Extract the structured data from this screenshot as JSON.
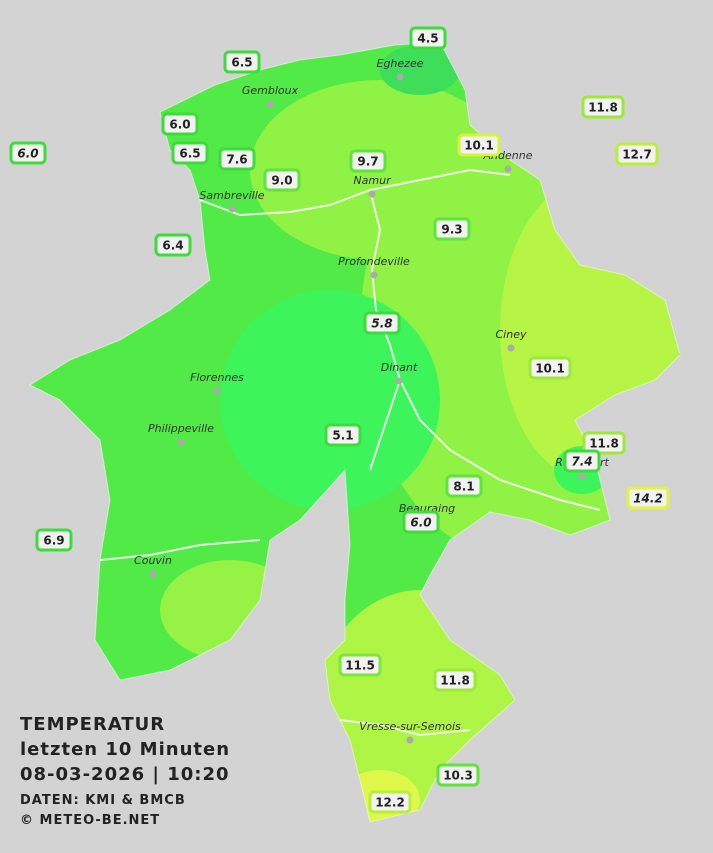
{
  "map": {
    "title": [
      "TEMPERATUR",
      "letzten 10 Minuten",
      "08-03-2026  |  10:20"
    ],
    "credits": [
      "DATEN: KMI & BMCB",
      "© METEO-BE.NET"
    ],
    "cities": [
      "Eghezee",
      "Gembloux",
      "Andenne",
      "Namur",
      "Sambreville",
      "Profondeville",
      "Ciney",
      "Dinant",
      "Florennes",
      "Philippeville",
      "Rochefort",
      "Beauraing",
      "Couvin",
      "Vresse-sur-Semois"
    ],
    "stations": [
      {
        "label": "4.5",
        "color": "#3ddc3a"
      },
      {
        "label": "6.5",
        "color": "#3ddc3a"
      },
      {
        "label": "11.8",
        "color": "#9ee83a"
      },
      {
        "label": "6.0",
        "color": "#3ddc3a"
      },
      {
        "label": "10.1",
        "color": "#d8f23a"
      },
      {
        "label": "6.0",
        "color": "#3ddc3a",
        "italic": true
      },
      {
        "label": "6.5",
        "color": "#3ddc3a"
      },
      {
        "label": "7.6",
        "color": "#3ddc3a"
      },
      {
        "label": "9.7",
        "color": "#5ee43a"
      },
      {
        "label": "12.7",
        "color": "#b9ee3a"
      },
      {
        "label": "9.0",
        "color": "#5ee43a"
      },
      {
        "label": "9.3",
        "color": "#5ee43a"
      },
      {
        "label": "6.4",
        "color": "#3ddc3a"
      },
      {
        "label": "5.8",
        "color": "#3ddc3a",
        "italic": true
      },
      {
        "label": "10.1",
        "color": "#9ee83a"
      },
      {
        "label": "5.1",
        "color": "#3ddc3a"
      },
      {
        "label": "11.8",
        "color": "#9ee83a"
      },
      {
        "label": "7.4",
        "color": "#3ddc3a",
        "italic": true
      },
      {
        "label": "14.2",
        "color": "#e2f53a",
        "italic": true
      },
      {
        "label": "8.1",
        "color": "#5ee43a"
      },
      {
        "label": "6.0",
        "color": "#3ddc3a",
        "italic": true
      },
      {
        "label": "6.9",
        "color": "#3ddc3a"
      },
      {
        "label": "11.5",
        "color": "#7ee63a"
      },
      {
        "label": "11.8",
        "color": "#9ee83a"
      },
      {
        "label": "10.3",
        "color": "#5ee43a"
      },
      {
        "label": "12.2",
        "color": "#b9ee3a"
      }
    ]
  }
}
